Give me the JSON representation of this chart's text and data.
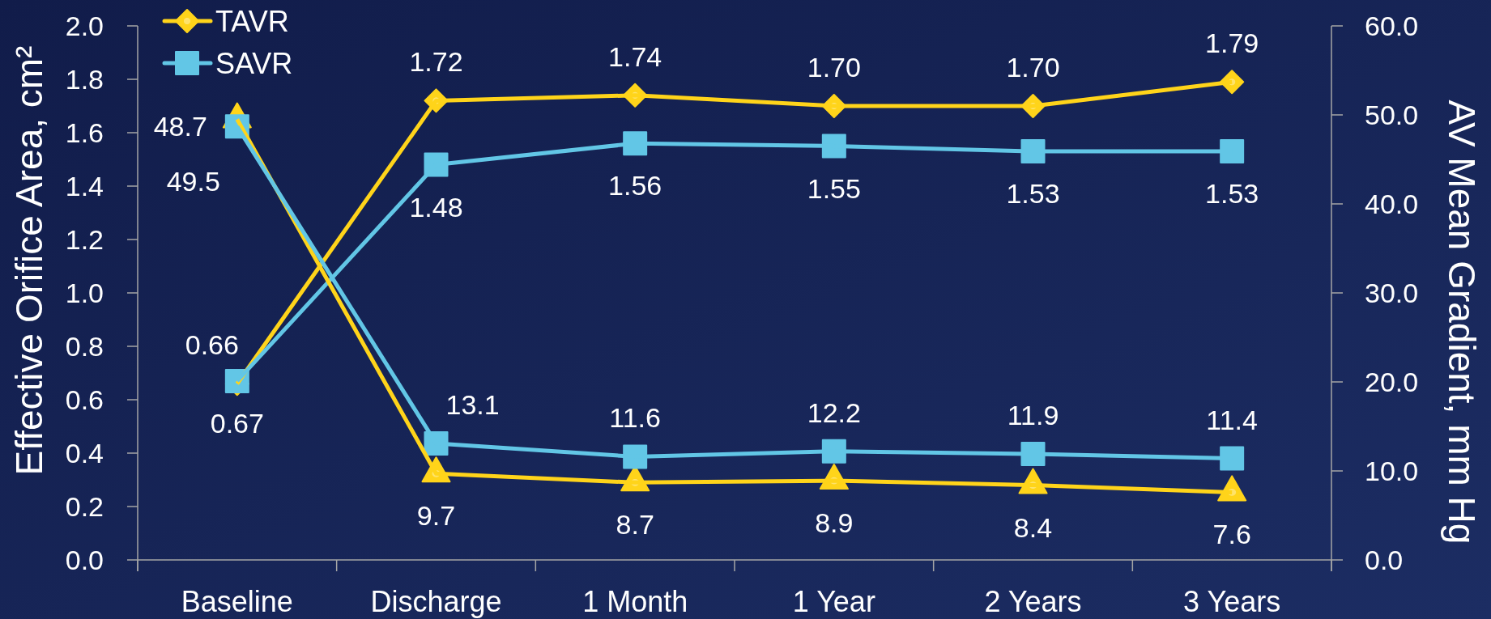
{
  "chart_data": {
    "type": "line",
    "ylabel": "Effective Orifice Area, cm²",
    "y2label": "AV Mean Gradient, mm Hg",
    "categories": [
      "Baseline",
      "Discharge",
      "1 Month",
      "1 Year",
      "2 Years",
      "3 Years"
    ],
    "series": [
      {
        "name": "TAVR",
        "color": "#ffd41a",
        "marker": "diamond",
        "values": [
          0.66,
          1.72,
          1.74,
          1.7,
          1.7,
          1.79
        ],
        "value_labels": [
          "0.66",
          "1.72",
          "1.74",
          "1.70",
          "1.70",
          "1.79"
        ]
      },
      {
        "name": "SAVR",
        "color": "#62c6e6",
        "marker": "square",
        "values": [
          0.67,
          1.48,
          1.56,
          1.55,
          1.53,
          1.53
        ],
        "value_labels": [
          "0.67",
          "1.48",
          "1.56",
          "1.55",
          "1.53",
          "1.53"
        ]
      },
      {
        "color": "#ffd41a",
        "marker": "triangle",
        "axis": "y2",
        "values": [
          49.5,
          9.7,
          8.7,
          8.9,
          8.4,
          7.6
        ],
        "value_labels": [
          "49.5",
          "9.7",
          "8.7",
          "8.9",
          "8.4",
          "7.6"
        ]
      },
      {
        "color": "#62c6e6",
        "marker": "square",
        "axis": "y2",
        "values": [
          48.7,
          13.1,
          11.6,
          12.2,
          11.9,
          11.4
        ],
        "value_labels": [
          "48.7",
          "13.1",
          "11.6",
          "12.2",
          "11.9",
          "11.4"
        ]
      }
    ],
    "ylim": [
      0,
      2
    ],
    "yticks": [
      {
        "value": 0,
        "label": "0.0"
      },
      {
        "value": 0.2,
        "label": "0.2"
      },
      {
        "value": 0.4,
        "label": "0.4"
      },
      {
        "value": 0.6,
        "label": "0.6"
      },
      {
        "value": 0.8,
        "label": "0.8"
      },
      {
        "value": 1,
        "label": "1.0"
      },
      {
        "value": 1.2,
        "label": "1.2"
      },
      {
        "value": 1.4,
        "label": "1.4"
      },
      {
        "value": 1.6,
        "label": "1.6"
      },
      {
        "value": 1.8,
        "label": "1.8"
      },
      {
        "value": 2,
        "label": "2.0"
      }
    ],
    "y2lim": [
      0,
      60
    ],
    "y2ticks": [
      {
        "value": 0,
        "label": "0.0"
      },
      {
        "value": 10,
        "label": "10.0"
      },
      {
        "value": 20,
        "label": "20.0"
      },
      {
        "value": 30,
        "label": "30.0"
      },
      {
        "value": 40,
        "label": "40.0"
      },
      {
        "value": 50,
        "label": "50.0"
      },
      {
        "value": 60,
        "label": "60.0"
      }
    ],
    "legend": "top left"
  }
}
